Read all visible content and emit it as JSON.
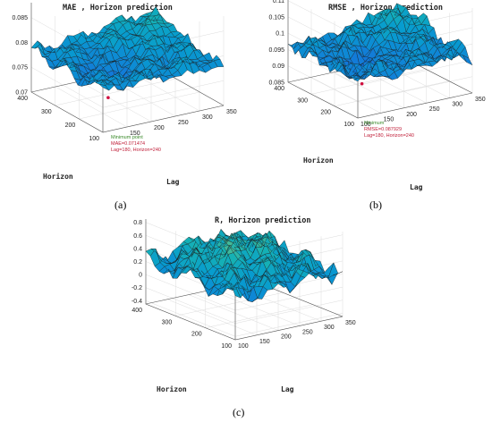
{
  "chart_data": [
    {
      "type": "surface",
      "id": "mae",
      "title": "MAE , Horizon prediction",
      "caption": "(a)",
      "xlabel": "Lag",
      "ylabel": "Horizon",
      "x_ticks": [
        150,
        200,
        250,
        300,
        350
      ],
      "y_ticks": [
        100,
        200,
        300,
        400
      ],
      "z_ticks": [
        0.07,
        0.075,
        0.08,
        0.085
      ],
      "z_tick_labels": [
        "0.07",
        "0.075",
        "0.08",
        "0.085"
      ],
      "xlim": [
        100,
        350
      ],
      "ylim": [
        100,
        400
      ],
      "zlim": [
        0.07,
        0.088
      ],
      "surface_mean": 0.0785,
      "surface_amplitude": 0.0045,
      "peak_x": 330,
      "peak_y": 380,
      "minimum": {
        "label": "Minimum point",
        "value_text": "MAE=0.071474",
        "loc_text": "Lag=180, Horizon=240",
        "x": 180,
        "y": 240,
        "z": 0.071474
      }
    },
    {
      "type": "surface",
      "id": "rmse",
      "title": "RMSE , Horizon prediction",
      "caption": "(b)",
      "xlabel": "Lag",
      "ylabel": "Horizon",
      "x_ticks": [
        100,
        150,
        200,
        250,
        300,
        350
      ],
      "y_ticks": [
        100,
        200,
        300,
        400
      ],
      "z_ticks": [
        0.085,
        0.09,
        0.095,
        0.1,
        0.105,
        0.11
      ],
      "z_tick_labels": [
        "0.085",
        "0.09",
        "0.095",
        "0.1",
        "0.105",
        "0.11"
      ],
      "xlim": [
        100,
        350
      ],
      "ylim": [
        100,
        400
      ],
      "zlim": [
        0.085,
        0.111
      ],
      "surface_mean": 0.0965,
      "surface_amplitude": 0.007,
      "peak_x": 330,
      "peak_y": 380,
      "minimum": {
        "label": "Minimum",
        "value_text": "RMSE=0.087929",
        "loc_text": "Lag=180, Horizon=240",
        "x": 180,
        "y": 240,
        "z": 0.087929
      }
    },
    {
      "type": "surface",
      "id": "r",
      "title": "R, Horizon prediction",
      "caption": "(c)",
      "xlabel": "Lag",
      "ylabel": "Horizon",
      "x_ticks": [
        100,
        150,
        200,
        250,
        300,
        350
      ],
      "y_ticks": [
        100,
        200,
        300,
        400
      ],
      "z_ticks": [
        -0.4,
        -0.2,
        0,
        0.2,
        0.4,
        0.6,
        0.8
      ],
      "z_tick_labels": [
        "-0.4",
        "-0.2",
        "0",
        "0.2",
        "0.4",
        "0.6",
        "0.8"
      ],
      "xlim": [
        100,
        350
      ],
      "ylim": [
        100,
        400
      ],
      "zlim": [
        -0.45,
        0.85
      ],
      "surface_mean": 0.2,
      "surface_amplitude": 0.45,
      "peak_x": 240,
      "peak_y": 300
    }
  ]
}
